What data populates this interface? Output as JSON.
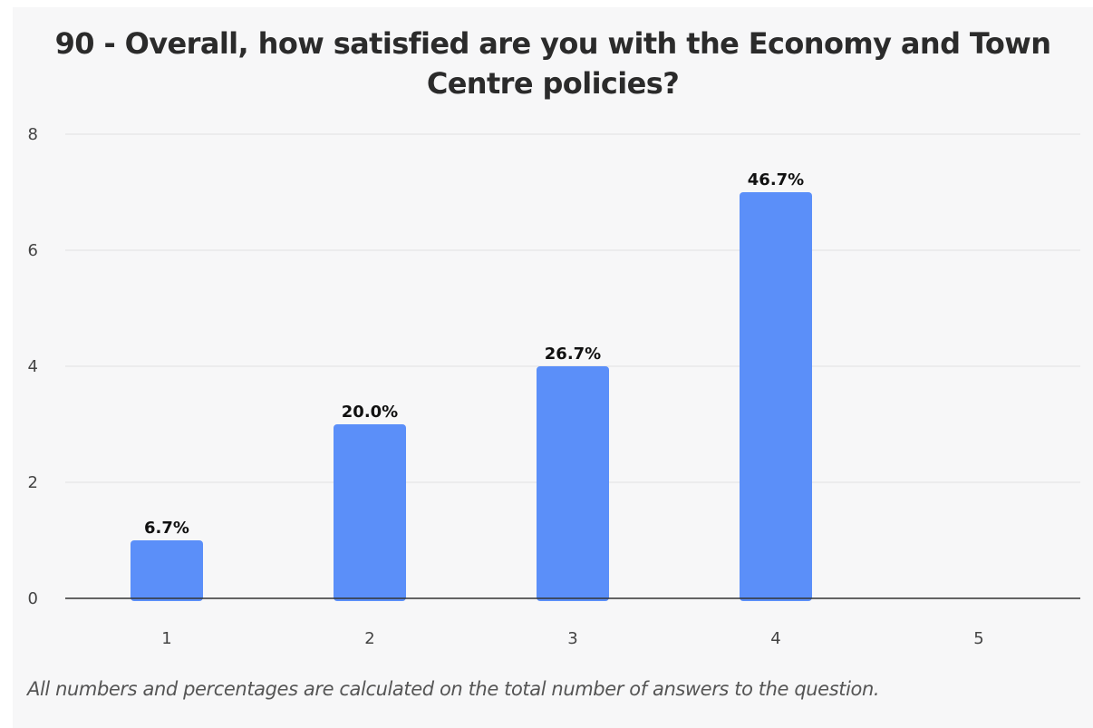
{
  "chart_data": {
    "type": "bar",
    "title": "90 - Overall, how satisfied are you with the Economy and Town Centre policies?",
    "categories": [
      "1",
      "2",
      "3",
      "4",
      "5"
    ],
    "values": [
      1,
      3,
      4,
      7,
      0
    ],
    "data_labels": [
      "6.7%",
      "20.0%",
      "26.7%",
      "46.7%",
      ""
    ],
    "xlabel": "",
    "ylabel": "",
    "ylim": [
      0,
      8
    ],
    "yticks": [
      "0",
      "2",
      "4",
      "6",
      "8"
    ],
    "grid": true,
    "bar_color": "#5b8ff9",
    "footnote": "All numbers and percentages are calculated on the total number of answers to the question."
  }
}
